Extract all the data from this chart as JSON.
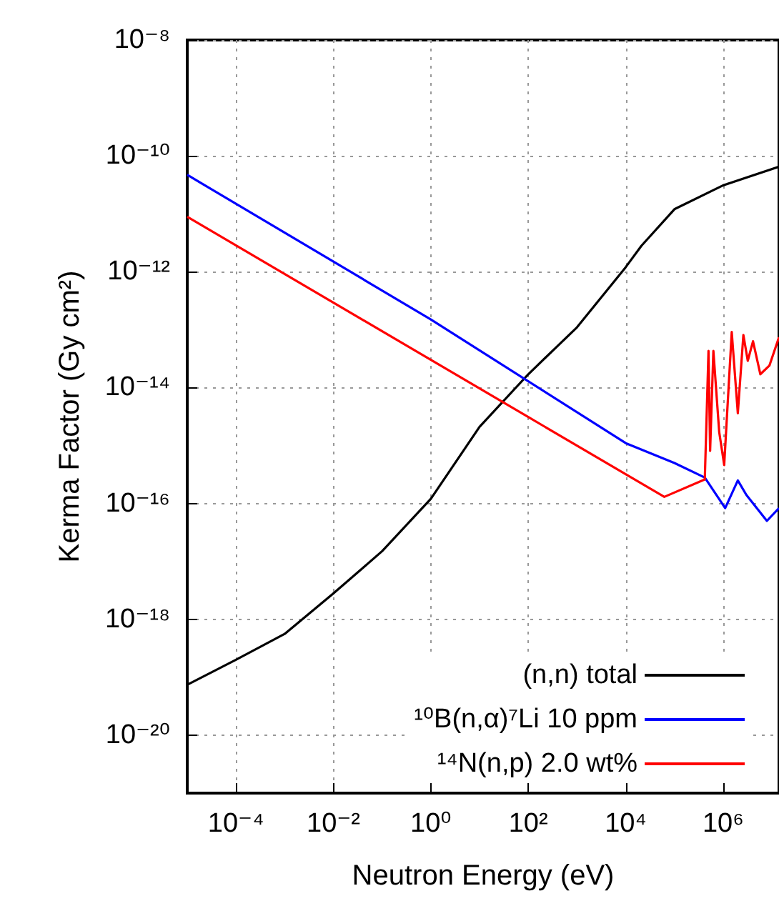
{
  "chart_data": {
    "type": "line",
    "xlabel": "Neutron Energy (eV)",
    "ylabel": "Kerma Factor (Gy cm²)",
    "log": "xy",
    "grid": true,
    "legend": "bottom right",
    "marker": "none",
    "line_style": "solid",
    "xlim": [
      1e-05,
      14000000.0
    ],
    "ylim": [
      1e-21,
      1e-08
    ],
    "xticks": [
      {
        "value": 0.0001,
        "label": "10⁻⁴"
      },
      {
        "value": 0.01,
        "label": "10⁻²"
      },
      {
        "value": 1,
        "label": "10⁰"
      },
      {
        "value": 100,
        "label": "10²"
      },
      {
        "value": 10000.0,
        "label": "10⁴"
      },
      {
        "value": 1000000.0,
        "label": "10⁶"
      }
    ],
    "yticks": [
      {
        "value": 1e-20,
        "label": "10⁻²⁰"
      },
      {
        "value": 1e-18,
        "label": "10⁻¹⁸"
      },
      {
        "value": 1e-16,
        "label": "10⁻¹⁶"
      },
      {
        "value": 1e-14,
        "label": "10⁻¹⁴"
      },
      {
        "value": 1e-12,
        "label": "10⁻¹²"
      },
      {
        "value": 1e-10,
        "label": "10⁻¹⁰"
      },
      {
        "value": 1e-08,
        "label": "10⁻⁸"
      }
    ],
    "series": [
      {
        "name": "(n,n) total",
        "color": "#000000",
        "x": [
          1e-05,
          0.0001,
          0.001,
          0.01,
          0.1,
          1,
          10,
          100,
          1000,
          10000.0,
          21000.0,
          100000.0,
          1000000.0,
          14000000.0
        ],
        "values": [
          7.4e-20,
          2e-19,
          5.6e-19,
          2.8e-18,
          1.5e-17,
          1.2e-16,
          2.1e-15,
          1.7e-14,
          1.1e-13,
          1.2e-12,
          2.8e-12,
          1.2e-11,
          3.1e-11,
          6.5e-11
        ]
      },
      {
        "name": "¹⁰B(n,α)⁷Li 10 ppm",
        "color": "#0000ff",
        "x": [
          1e-05,
          1,
          10000.0,
          100000.0,
          420000.0,
          1100000.0,
          2000000.0,
          3000000.0,
          7900000.0,
          14000000.0
        ],
        "values": [
          4.7e-11,
          1.5e-13,
          1.1e-15,
          5e-16,
          2.8e-16,
          8.3e-17,
          2.5e-16,
          1.4e-16,
          5e-17,
          8.3e-17
        ]
      },
      {
        "name": "¹⁴N(n,p) 2.0 wt%",
        "color": "#ff0000",
        "x": [
          1e-05,
          100,
          62000.0,
          420000.0,
          500000.0,
          540000.0,
          630000.0,
          830000.0,
          1050000.0,
          1500000.0,
          2000000.0,
          2600000.0,
          3200000.0,
          4100000.0,
          5800000.0,
          8900000.0,
          14000000.0
        ],
        "values": [
          8.9e-12,
          3.1e-15,
          1.3e-16,
          2.6e-16,
          4.3e-14,
          8.1e-16,
          4.3e-14,
          1.7e-15,
          4.6e-16,
          9.1e-14,
          3.6e-15,
          8.1e-14,
          2.9e-14,
          6.3e-14,
          1.7e-14,
          2.4e-14,
          7.4e-14
        ]
      }
    ]
  }
}
